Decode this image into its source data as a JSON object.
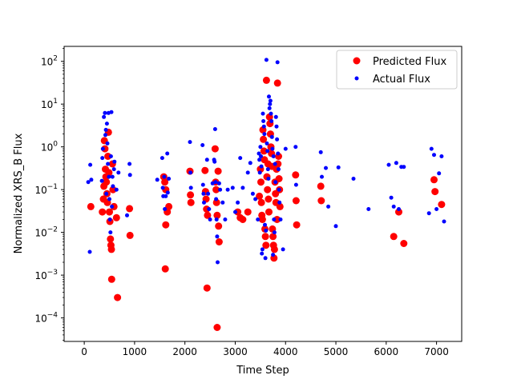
{
  "chart_data": {
    "type": "scatter",
    "title": "",
    "xlabel": "Time Step",
    "ylabel": "Normalized XRS_B Flux",
    "xlim": [
      -400,
      7500
    ],
    "ylog": true,
    "ylim_log10": [
      -4.55,
      2.35
    ],
    "x_ticks": [
      0,
      1000,
      2000,
      3000,
      4000,
      5000,
      6000,
      7000
    ],
    "x_tick_labels": [
      "0",
      "1000",
      "2000",
      "3000",
      "4000",
      "5000",
      "6000",
      "7000"
    ],
    "y_ticks_log10": [
      -4,
      -3,
      -2,
      -1,
      0,
      1,
      2
    ],
    "y_tick_labels": [
      {
        "base": "10",
        "exp": "−4"
      },
      {
        "base": "10",
        "exp": "−3"
      },
      {
        "base": "10",
        "exp": "−2"
      },
      {
        "base": "10",
        "exp": "−1"
      },
      {
        "base": "10",
        "exp": "0"
      },
      {
        "base": "10",
        "exp": "1"
      },
      {
        "base": "10",
        "exp": "2"
      }
    ],
    "grid": false,
    "legend": {
      "placement": "top-right"
    },
    "series": [
      {
        "name": "Predicted Flux",
        "color": "#ff0000",
        "marker": "large-dot",
        "points": [
          [
            130,
            0.04
          ],
          [
            360,
            0.03
          ],
          [
            380,
            0.06
          ],
          [
            390,
            0.12
          ],
          [
            400,
            1.4
          ],
          [
            410,
            0.9
          ],
          [
            420,
            0.3
          ],
          [
            430,
            0.2
          ],
          [
            440,
            0.15
          ],
          [
            450,
            0.08
          ],
          [
            460,
            0.05
          ],
          [
            470,
            0.6
          ],
          [
            480,
            2.2
          ],
          [
            490,
            0.25
          ],
          [
            500,
            0.03
          ],
          [
            510,
            0.018
          ],
          [
            520,
            0.007
          ],
          [
            530,
            0.005
          ],
          [
            540,
            0.004
          ],
          [
            545,
            0.0008
          ],
          [
            560,
            0.4
          ],
          [
            570,
            0.1
          ],
          [
            590,
            0.04
          ],
          [
            640,
            0.022
          ],
          [
            660,
            0.0003
          ],
          [
            900,
            0.036
          ],
          [
            910,
            0.0085
          ],
          [
            1580,
            0.2
          ],
          [
            1600,
            0.15
          ],
          [
            1620,
            0.1
          ],
          [
            1610,
            0.0014
          ],
          [
            1620,
            0.015
          ],
          [
            1680,
            0.04
          ],
          [
            1650,
            0.03
          ],
          [
            2100,
            0.27
          ],
          [
            2110,
            0.075
          ],
          [
            2120,
            0.05
          ],
          [
            2400,
            0.28
          ],
          [
            2410,
            0.09
          ],
          [
            2420,
            0.06
          ],
          [
            2430,
            0.035
          ],
          [
            2440,
            0.0005
          ],
          [
            2450,
            0.025
          ],
          [
            2600,
            0.9
          ],
          [
            2610,
            0.15
          ],
          [
            2620,
            0.1
          ],
          [
            2630,
            0.05
          ],
          [
            2640,
            0.025
          ],
          [
            2660,
            0.27
          ],
          [
            2670,
            0.014
          ],
          [
            2680,
            0.006
          ],
          [
            2640,
            6e-05
          ],
          [
            3050,
            0.03
          ],
          [
            3100,
            0.022
          ],
          [
            3150,
            0.02
          ],
          [
            3250,
            0.03
          ],
          [
            3480,
            0.07
          ],
          [
            3500,
            0.3
          ],
          [
            3510,
            0.15
          ],
          [
            3520,
            0.05
          ],
          [
            3530,
            0.025
          ],
          [
            3540,
            0.02
          ],
          [
            3550,
            2.5
          ],
          [
            3560,
            1.5
          ],
          [
            3570,
            0.8
          ],
          [
            3580,
            0.5
          ],
          [
            3590,
            0.012
          ],
          [
            3600,
            0.008
          ],
          [
            3610,
            0.005
          ],
          [
            3620,
            36
          ],
          [
            3630,
            0.2
          ],
          [
            3640,
            0.1
          ],
          [
            3650,
            0.4
          ],
          [
            3660,
            0.06
          ],
          [
            3670,
            0.03
          ],
          [
            3680,
            5
          ],
          [
            3690,
            3.5
          ],
          [
            3700,
            2
          ],
          [
            3710,
            1
          ],
          [
            3720,
            0.7
          ],
          [
            3730,
            0.35
          ],
          [
            3740,
            0.012
          ],
          [
            3750,
            0.008
          ],
          [
            3760,
            0.005
          ],
          [
            3770,
            0.0025
          ],
          [
            3780,
            0.004
          ],
          [
            3790,
            0.15
          ],
          [
            3800,
            0.08
          ],
          [
            3810,
            0.05
          ],
          [
            3820,
            0.3
          ],
          [
            3830,
            0.02
          ],
          [
            3840,
            31
          ],
          [
            3850,
            0.4
          ],
          [
            3860,
            0.6
          ],
          [
            3870,
            0.18
          ],
          [
            3880,
            0.1
          ],
          [
            3890,
            0.04
          ],
          [
            4200,
            0.22
          ],
          [
            4210,
            0.055
          ],
          [
            4220,
            0.015
          ],
          [
            4700,
            0.12
          ],
          [
            4710,
            0.055
          ],
          [
            6150,
            0.008
          ],
          [
            6250,
            0.03
          ],
          [
            6350,
            0.0055
          ],
          [
            6950,
            0.17
          ],
          [
            6970,
            0.09
          ],
          [
            7100,
            0.045
          ]
        ]
      },
      {
        "name": "Actual Flux",
        "color": "#0000ff",
        "marker": "small-dot",
        "points": [
          [
            80,
            0.15
          ],
          [
            110,
            0.0035
          ],
          [
            120,
            0.38
          ],
          [
            140,
            0.17
          ],
          [
            350,
            0.16
          ],
          [
            360,
            0.55
          ],
          [
            370,
            0.9
          ],
          [
            390,
            5
          ],
          [
            410,
            6.2
          ],
          [
            420,
            1.9
          ],
          [
            430,
            2.5
          ],
          [
            440,
            0.08
          ],
          [
            450,
            3.5
          ],
          [
            460,
            1.2
          ],
          [
            470,
            0.4
          ],
          [
            480,
            6.2
          ],
          [
            490,
            0.2
          ],
          [
            500,
            0.06
          ],
          [
            510,
            0.02
          ],
          [
            520,
            0.01
          ],
          [
            530,
            0.6
          ],
          [
            540,
            6.5
          ],
          [
            550,
            0.04
          ],
          [
            560,
            0.2
          ],
          [
            570,
            0.12
          ],
          [
            590,
            0.3
          ],
          [
            600,
            0.45
          ],
          [
            640,
            0.1
          ],
          [
            680,
            0.25
          ],
          [
            850,
            0.025
          ],
          [
            900,
            0.4
          ],
          [
            910,
            0.22
          ],
          [
            1450,
            0.17
          ],
          [
            1550,
            0.55
          ],
          [
            1560,
            0.11
          ],
          [
            1570,
            0.07
          ],
          [
            1590,
            0.2
          ],
          [
            1600,
            0.035
          ],
          [
            1620,
            0.07
          ],
          [
            1650,
            0.7
          ],
          [
            1660,
            0.085
          ],
          [
            1680,
            0.18
          ],
          [
            2100,
            1.3
          ],
          [
            2110,
            0.25
          ],
          [
            2120,
            0.11
          ],
          [
            2350,
            1.1
          ],
          [
            2360,
            0.13
          ],
          [
            2370,
            0.08
          ],
          [
            2380,
            0.05
          ],
          [
            2440,
            0.5
          ],
          [
            2460,
            0.08
          ],
          [
            2480,
            0.035
          ],
          [
            2500,
            0.02
          ],
          [
            2550,
            0.14
          ],
          [
            2580,
            0.5
          ],
          [
            2590,
            0.45
          ],
          [
            2600,
            2.6
          ],
          [
            2610,
            0.15
          ],
          [
            2620,
            0.06
          ],
          [
            2630,
            0.02
          ],
          [
            2640,
            0.008
          ],
          [
            2650,
            0.002
          ],
          [
            2680,
            0.14
          ],
          [
            2700,
            0.1
          ],
          [
            2750,
            0.05
          ],
          [
            2800,
            0.02
          ],
          [
            2850,
            0.1
          ],
          [
            2950,
            0.11
          ],
          [
            3000,
            0.03
          ],
          [
            3050,
            0.05
          ],
          [
            3100,
            0.55
          ],
          [
            3150,
            0.11
          ],
          [
            3250,
            0.25
          ],
          [
            3300,
            0.42
          ],
          [
            3350,
            0.08
          ],
          [
            3400,
            0.06
          ],
          [
            3450,
            0.02
          ],
          [
            3470,
            0.7
          ],
          [
            3480,
            0.5
          ],
          [
            3490,
            0.25
          ],
          [
            3500,
            1
          ],
          [
            3510,
            0.6
          ],
          [
            3520,
            0.35
          ],
          [
            3530,
            0.0032
          ],
          [
            3540,
            0.004
          ],
          [
            3550,
            6
          ],
          [
            3560,
            4
          ],
          [
            3570,
            3
          ],
          [
            3580,
            2
          ],
          [
            3590,
            0.015
          ],
          [
            3600,
            0.0025
          ],
          [
            3610,
            0.011
          ],
          [
            3620,
            108
          ],
          [
            3630,
            1.2
          ],
          [
            3640,
            0.8
          ],
          [
            3650,
            0.3
          ],
          [
            3660,
            0.18
          ],
          [
            3670,
            15
          ],
          [
            3680,
            8
          ],
          [
            3690,
            10
          ],
          [
            3700,
            12
          ],
          [
            3710,
            6
          ],
          [
            3720,
            4
          ],
          [
            3730,
            1.7
          ],
          [
            3740,
            0.9
          ],
          [
            3750,
            0.003
          ],
          [
            3760,
            0.6
          ],
          [
            3770,
            0.02
          ],
          [
            3780,
            0.01
          ],
          [
            3790,
            0.4
          ],
          [
            3800,
            0.15
          ],
          [
            3810,
            5
          ],
          [
            3820,
            3
          ],
          [
            3830,
            1.5
          ],
          [
            3840,
            95
          ],
          [
            3850,
            0.7
          ],
          [
            3860,
            0.3
          ],
          [
            3870,
            0.1
          ],
          [
            3880,
            0.05
          ],
          [
            3900,
            0.02
          ],
          [
            3950,
            0.004
          ],
          [
            4000,
            0.9
          ],
          [
            4200,
            1
          ],
          [
            4210,
            0.13
          ],
          [
            4700,
            0.75
          ],
          [
            4720,
            0.2
          ],
          [
            4800,
            0.32
          ],
          [
            4850,
            0.04
          ],
          [
            5000,
            0.014
          ],
          [
            5050,
            0.33
          ],
          [
            5350,
            0.18
          ],
          [
            5650,
            0.035
          ],
          [
            6050,
            0.38
          ],
          [
            6100,
            0.065
          ],
          [
            6150,
            0.04
          ],
          [
            6200,
            0.42
          ],
          [
            6250,
            0.035
          ],
          [
            6300,
            0.34
          ],
          [
            6350,
            0.34
          ],
          [
            6850,
            0.028
          ],
          [
            6900,
            0.9
          ],
          [
            6950,
            0.65
          ],
          [
            7000,
            0.035
          ],
          [
            7050,
            0.24
          ],
          [
            7100,
            0.6
          ],
          [
            7150,
            0.018
          ]
        ]
      }
    ]
  }
}
